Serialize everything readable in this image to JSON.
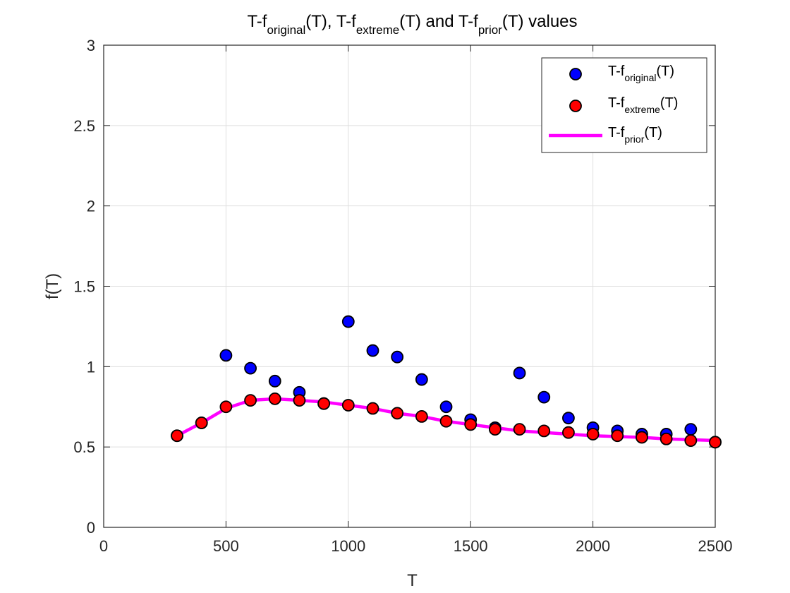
{
  "chart_data": {
    "type": "scatter",
    "title_parts": [
      {
        "text": "T-f",
        "sub": false
      },
      {
        "text": "original",
        "sub": true
      },
      {
        "text": "(T), T-f",
        "sub": false
      },
      {
        "text": "extreme",
        "sub": true
      },
      {
        "text": "(T) and T-f",
        "sub": false
      },
      {
        "text": "prior",
        "sub": true
      },
      {
        "text": "(T) values",
        "sub": false
      }
    ],
    "xlabel": "T",
    "ylabel": "f(T)",
    "xlim": [
      0,
      2500
    ],
    "ylim": [
      0,
      3
    ],
    "xticks": [
      0,
      500,
      1000,
      1500,
      2000,
      2500
    ],
    "yticks": [
      0,
      0.5,
      1,
      1.5,
      2,
      2.5,
      3
    ],
    "ytick_labels": [
      "0",
      "0.5",
      "1",
      "1.5",
      "2",
      "2.5",
      "3"
    ],
    "grid": true,
    "legend_position": "top-right",
    "series": [
      {
        "name_parts": [
          {
            "text": "T-f",
            "sub": false
          },
          {
            "text": "original",
            "sub": true
          },
          {
            "text": "(T)",
            "sub": false
          }
        ],
        "type": "scatter",
        "color": "#0000ff",
        "x": [
          300,
          400,
          500,
          600,
          700,
          800,
          900,
          1000,
          1100,
          1200,
          1300,
          1400,
          1500,
          1600,
          1700,
          1800,
          1900,
          2000,
          2100,
          2200,
          2300,
          2400,
          2500
        ],
        "y": [
          0.57,
          0.65,
          1.07,
          0.99,
          0.91,
          0.84,
          0.77,
          1.28,
          1.1,
          1.06,
          0.92,
          0.75,
          0.67,
          0.62,
          0.96,
          0.81,
          0.68,
          0.62,
          0.6,
          0.58,
          0.58,
          0.61,
          0.53
        ]
      },
      {
        "name_parts": [
          {
            "text": "T-f",
            "sub": false
          },
          {
            "text": "extreme",
            "sub": true
          },
          {
            "text": "(T)",
            "sub": false
          }
        ],
        "type": "scatter",
        "color": "#ff0000",
        "x": [
          300,
          400,
          500,
          600,
          700,
          800,
          900,
          1000,
          1100,
          1200,
          1300,
          1400,
          1500,
          1600,
          1700,
          1800,
          1900,
          2000,
          2100,
          2200,
          2300,
          2400,
          2500
        ],
        "y": [
          0.57,
          0.65,
          0.75,
          0.79,
          0.8,
          0.79,
          0.77,
          0.76,
          0.74,
          0.71,
          0.69,
          0.66,
          0.64,
          0.61,
          0.61,
          0.6,
          0.59,
          0.58,
          0.57,
          0.56,
          0.55,
          0.54,
          0.53
        ]
      },
      {
        "name_parts": [
          {
            "text": "T-f",
            "sub": false
          },
          {
            "text": "prior",
            "sub": true
          },
          {
            "text": "(T)",
            "sub": false
          }
        ],
        "type": "line",
        "color": "#ff00ff",
        "x": [
          300,
          400,
          500,
          600,
          700,
          800,
          900,
          1000,
          1100,
          1200,
          1300,
          1400,
          1500,
          1600,
          1700,
          1800,
          1900,
          2000,
          2100,
          2200,
          2300,
          2400,
          2500
        ],
        "y": [
          0.57,
          0.65,
          0.74,
          0.79,
          0.8,
          0.79,
          0.78,
          0.76,
          0.74,
          0.71,
          0.69,
          0.66,
          0.64,
          0.62,
          0.6,
          0.59,
          0.58,
          0.57,
          0.565,
          0.56,
          0.55,
          0.545,
          0.54
        ]
      }
    ]
  }
}
